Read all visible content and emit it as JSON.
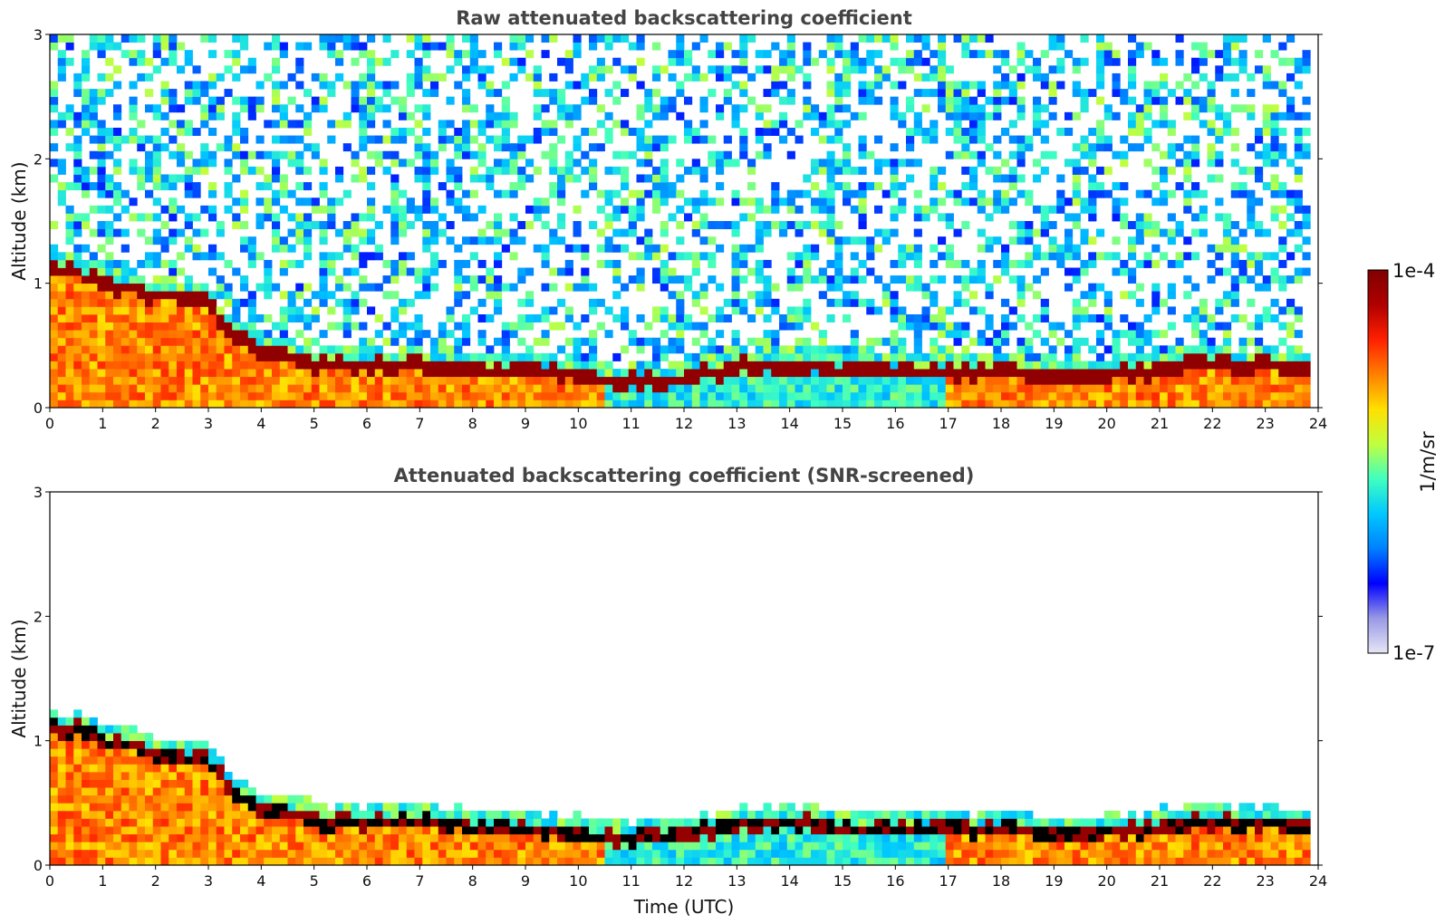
{
  "chart_data": [
    {
      "type": "heatmap",
      "title": "Raw attenuated backscattering coefficient",
      "xlabel": "",
      "ylabel": "Altitude (km)",
      "xlim": [
        0,
        24
      ],
      "ylim": [
        0,
        3
      ],
      "x_ticks": [
        0,
        1,
        2,
        3,
        4,
        5,
        6,
        7,
        8,
        9,
        10,
        11,
        12,
        13,
        14,
        15,
        16,
        17,
        18,
        19,
        20,
        21,
        22,
        23,
        24
      ],
      "y_ticks": [
        0,
        1,
        2,
        3
      ],
      "x_tick_labels": [
        "0",
        "1",
        "2",
        "3",
        "4",
        "5",
        "6",
        "7",
        "8",
        "9",
        "10",
        "11",
        "12",
        "13",
        "14",
        "15",
        "16",
        "17",
        "18",
        "19",
        "20",
        "21",
        "22",
        "23",
        "24"
      ],
      "y_tick_labels": [
        "0",
        "1",
        "2",
        "3"
      ],
      "data_end_time": 23.8,
      "screened": false,
      "boundary_layer_top_km": {
        "time": [
          0.5,
          1.0,
          2.0,
          3.0,
          3.3,
          4.0,
          5.0,
          6.0,
          7.0,
          8.0,
          9.0,
          10.0,
          11.0,
          12.0,
          13.0,
          14.0,
          15.0,
          16.0,
          17.0,
          18.0,
          19.0,
          20.0,
          21.0,
          22.0,
          23.0,
          23.8
        ],
        "altitude": [
          1.1,
          0.98,
          0.9,
          0.85,
          0.65,
          0.45,
          0.35,
          0.33,
          0.35,
          0.3,
          0.3,
          0.25,
          0.2,
          0.23,
          0.32,
          0.33,
          0.3,
          0.3,
          0.28,
          0.28,
          0.25,
          0.25,
          0.3,
          0.35,
          0.35,
          0.3
        ]
      }
    },
    {
      "type": "heatmap",
      "title": "Attenuated backscattering coefficient (SNR-screened)",
      "xlabel": "Time (UTC)",
      "ylabel": "Altitude (km)",
      "xlim": [
        0,
        24
      ],
      "ylim": [
        0,
        3
      ],
      "x_ticks": [
        0,
        1,
        2,
        3,
        4,
        5,
        6,
        7,
        8,
        9,
        10,
        11,
        12,
        13,
        14,
        15,
        16,
        17,
        18,
        19,
        20,
        21,
        22,
        23,
        24
      ],
      "y_ticks": [
        0,
        1,
        2,
        3
      ],
      "x_tick_labels": [
        "0",
        "1",
        "2",
        "3",
        "4",
        "5",
        "6",
        "7",
        "8",
        "9",
        "10",
        "11",
        "12",
        "13",
        "14",
        "15",
        "16",
        "17",
        "18",
        "19",
        "20",
        "21",
        "22",
        "23",
        "24"
      ],
      "y_tick_labels": [
        "0",
        "1",
        "2",
        "3"
      ],
      "data_end_time": 23.8,
      "screened": true,
      "boundary_layer_top_km": {
        "time": [
          0.5,
          1.0,
          2.0,
          3.0,
          3.3,
          4.0,
          5.0,
          6.0,
          7.0,
          8.0,
          9.0,
          10.0,
          11.0,
          12.0,
          13.0,
          14.0,
          15.0,
          16.0,
          17.0,
          18.0,
          19.0,
          20.0,
          21.0,
          22.0,
          23.0,
          23.8
        ],
        "altitude": [
          1.1,
          0.98,
          0.9,
          0.85,
          0.65,
          0.45,
          0.35,
          0.33,
          0.35,
          0.3,
          0.3,
          0.25,
          0.2,
          0.23,
          0.32,
          0.33,
          0.3,
          0.3,
          0.28,
          0.28,
          0.25,
          0.25,
          0.3,
          0.35,
          0.35,
          0.3
        ]
      }
    }
  ],
  "colorbar": {
    "label": "1/m/sr",
    "max_label": "1e-4",
    "min_label": "1e-7",
    "colormap": [
      "#e6e6f5",
      "#9999e6",
      "#0000ff",
      "#0080ff",
      "#00c8ff",
      "#40ffc0",
      "#c0ff40",
      "#ffe000",
      "#ff8000",
      "#ff2000",
      "#b00000",
      "#800000"
    ]
  }
}
